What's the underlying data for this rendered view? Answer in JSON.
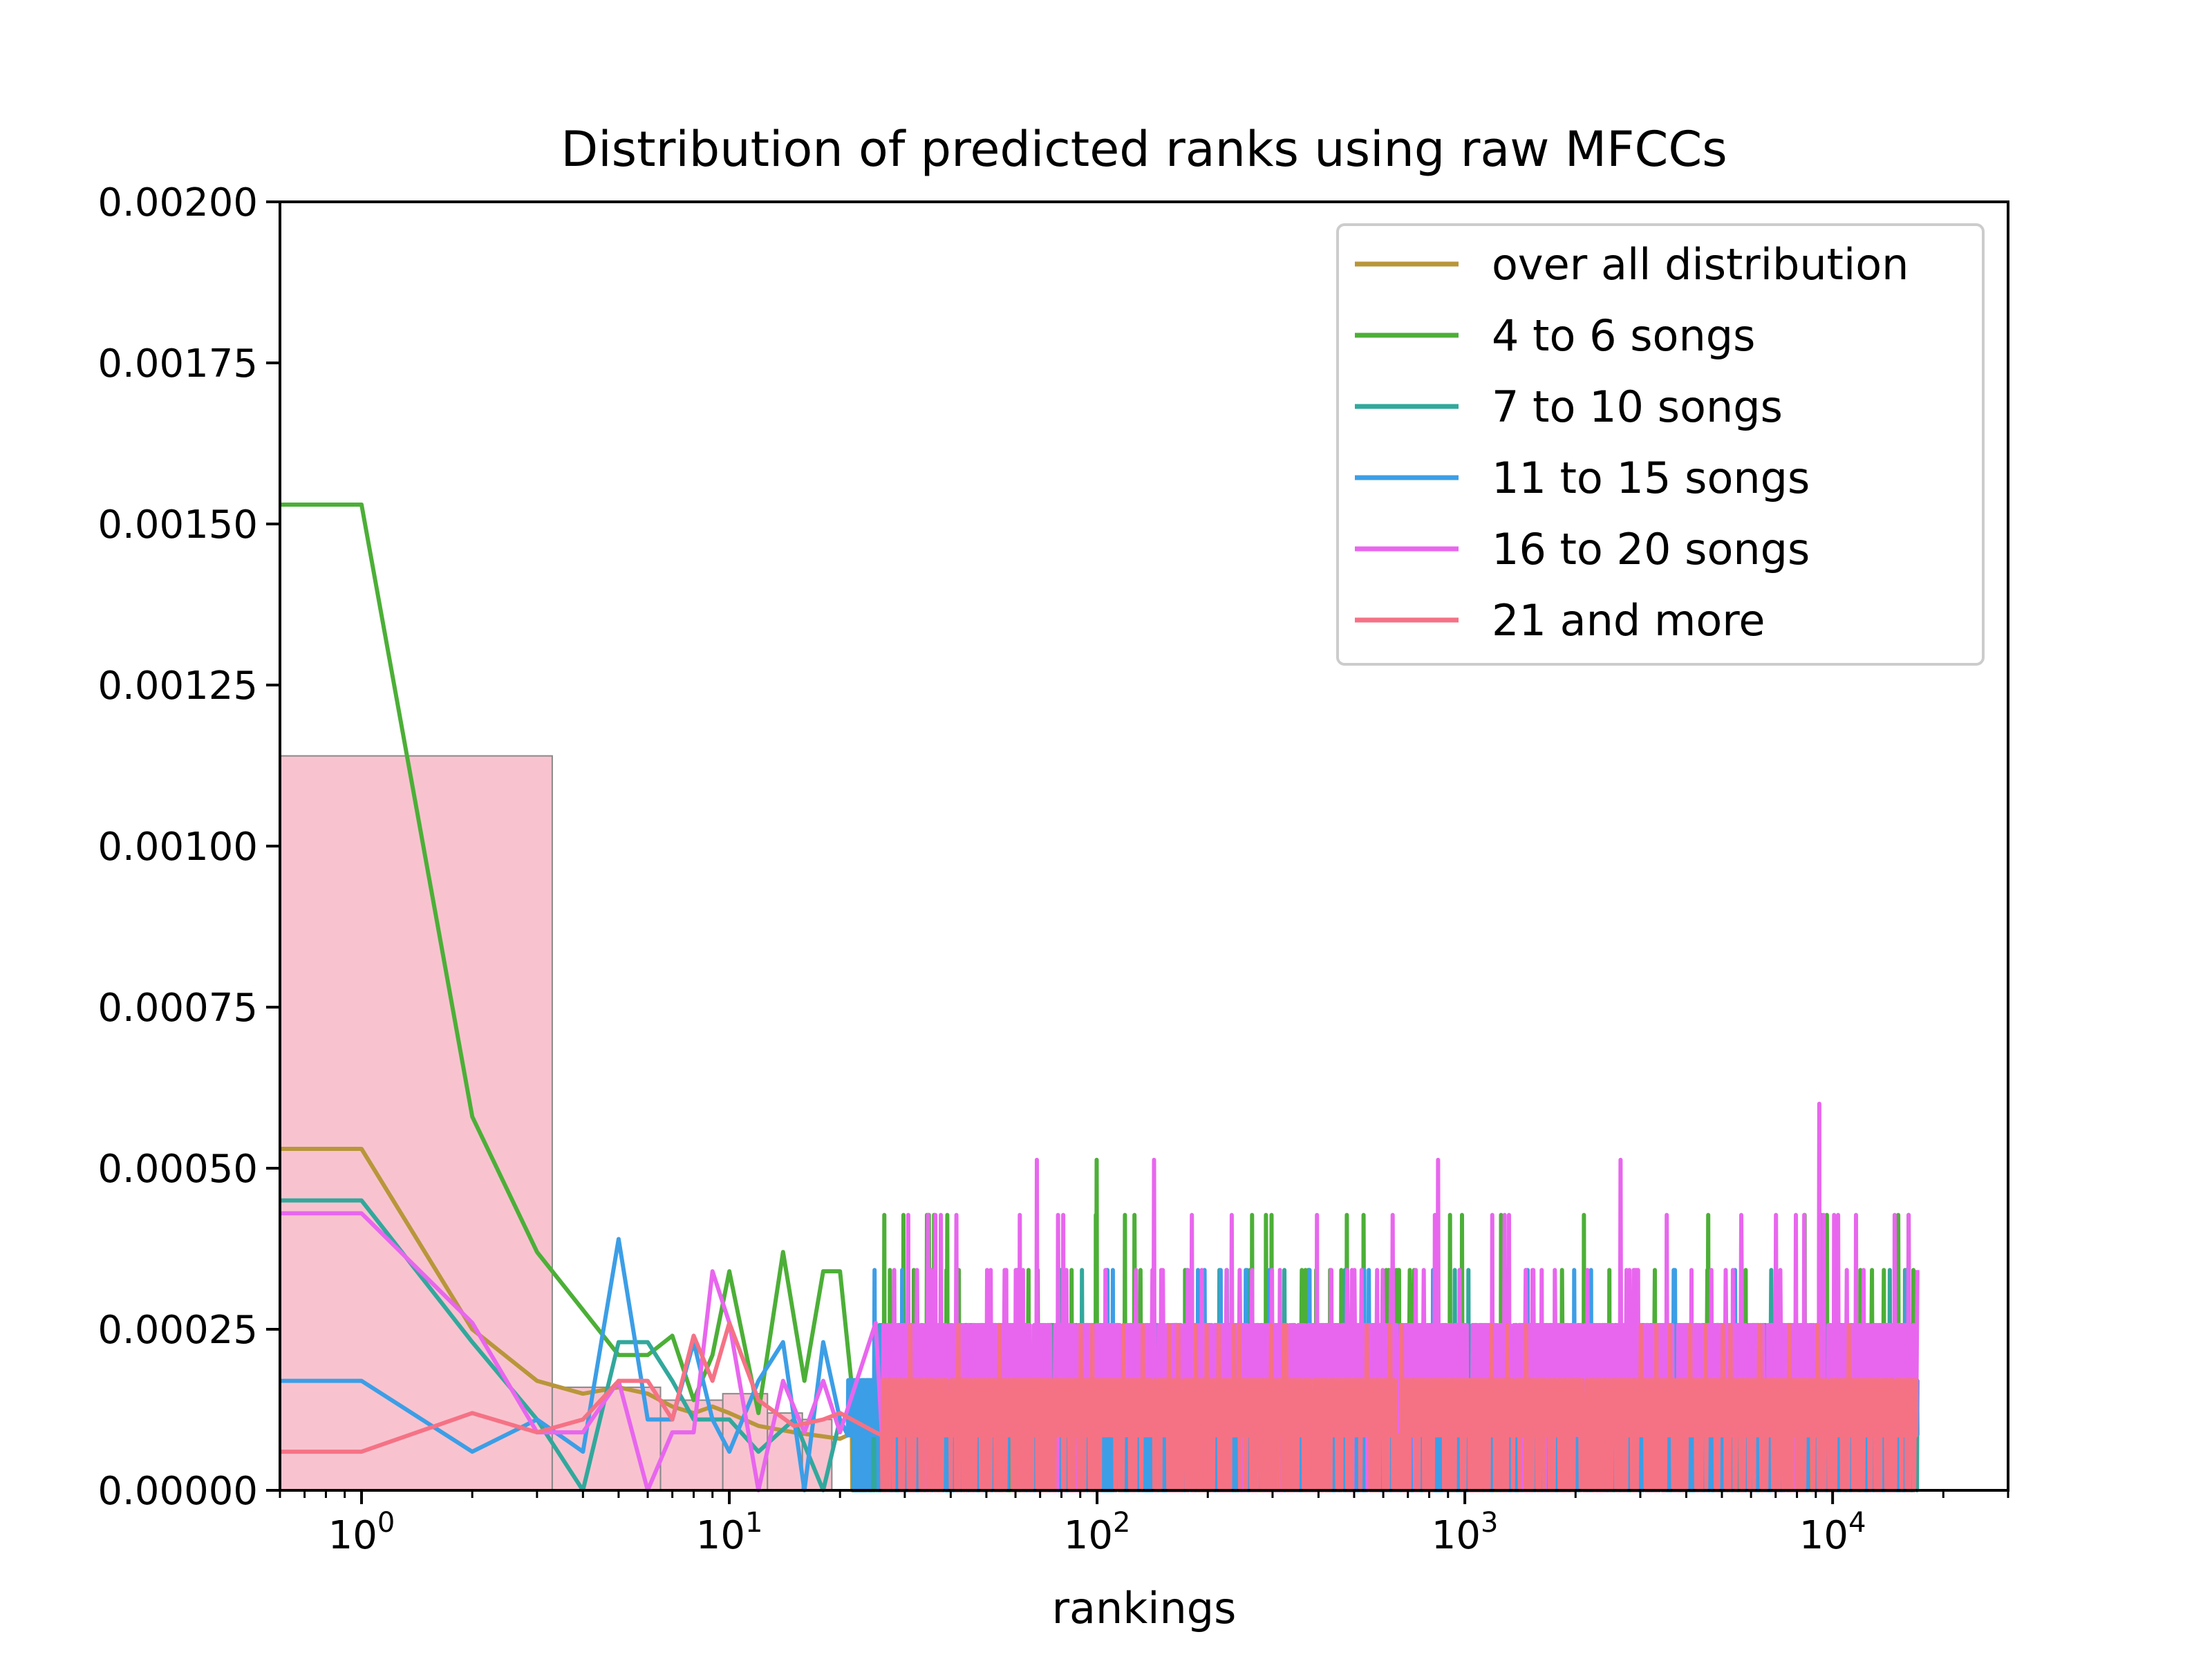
{
  "chart_data": {
    "type": "line",
    "title": "Distribution of predicted ranks using raw MFCCs",
    "xlabel": "rankings",
    "ylabel": "",
    "xscale": "log",
    "xlim": [
      0.6,
      30000
    ],
    "ylim": [
      0,
      0.002
    ],
    "x_ticks": [
      {
        "value": 1,
        "base": "10",
        "exp": "0"
      },
      {
        "value": 10,
        "base": "10",
        "exp": "1"
      },
      {
        "value": 100,
        "base": "10",
        "exp": "2"
      },
      {
        "value": 1000,
        "base": "10",
        "exp": "3"
      },
      {
        "value": 10000,
        "base": "10",
        "exp": "4"
      }
    ],
    "y_ticks": [
      {
        "value": 0,
        "label": "0.00000"
      },
      {
        "value": 0.00025,
        "label": "0.00025"
      },
      {
        "value": 0.0005,
        "label": "0.00050"
      },
      {
        "value": 0.00075,
        "label": "0.00075"
      },
      {
        "value": 0.001,
        "label": "0.00100"
      },
      {
        "value": 0.00125,
        "label": "0.00125"
      },
      {
        "value": 0.0015,
        "label": "0.00150"
      },
      {
        "value": 0.00175,
        "label": "0.00175"
      },
      {
        "value": 0.002,
        "label": "0.00200"
      }
    ],
    "grid": false,
    "legend_position": "top-right",
    "histogram": {
      "color": "#f8c3cf",
      "edge_color": "#888888",
      "bins": [
        {
          "x0": 0.6,
          "x1": 3.3,
          "value": 0.00114
        },
        {
          "x0": 3.3,
          "x1": 6.5,
          "value": 0.00016
        },
        {
          "x0": 6.5,
          "x1": 9.6,
          "value": 0.00014
        },
        {
          "x0": 9.6,
          "x1": 12.7,
          "value": 0.00015
        },
        {
          "x0": 12.7,
          "x1": 15.8,
          "value": 0.00012
        },
        {
          "x0": 15.8,
          "x1": 19.0,
          "value": 0.00011
        }
      ]
    },
    "series": [
      {
        "name": "over all distribution",
        "color": "#b8963a",
        "head": [
          [
            0.6,
            0.00053
          ],
          [
            1,
            0.00053
          ],
          [
            2,
            0.00025
          ],
          [
            3,
            0.00017
          ],
          [
            4,
            0.00015
          ],
          [
            5,
            0.00016
          ],
          [
            6,
            0.00015
          ],
          [
            7,
            0.00013
          ],
          [
            8,
            0.00012
          ],
          [
            9,
            0.00013
          ],
          [
            10,
            0.00012
          ],
          [
            12,
            0.0001
          ],
          [
            15,
            9e-05
          ],
          [
            20,
            8e-05
          ]
        ],
        "noise": {
          "base": 9e-05,
          "amp": 7e-05,
          "spike": 2e-05,
          "seed": 11,
          "xmax": 17000,
          "min": 2e-05
        }
      },
      {
        "name": "4 to 6 songs",
        "color": "#4caf37",
        "head": [
          [
            0.6,
            0.00153
          ],
          [
            1,
            0.00153
          ],
          [
            2,
            0.00058
          ],
          [
            3,
            0.00037
          ],
          [
            4,
            0.00028
          ],
          [
            5,
            0.00021
          ],
          [
            6,
            0.00021
          ],
          [
            7,
            0.00024
          ],
          [
            8,
            0.00014
          ],
          [
            9,
            0.00021
          ],
          [
            10,
            0.00034
          ],
          [
            12,
            0.00012
          ],
          [
            14,
            0.00037
          ],
          [
            16,
            0.00017
          ],
          [
            18,
            0.00034
          ],
          [
            20,
            0.00034
          ],
          [
            22,
            0.00011
          ],
          [
            25,
            6e-05
          ]
        ],
        "noise": {
          "base": 0.00012,
          "amp": 0.00014,
          "spike": 0.00012,
          "seed": 22,
          "xmax": 17000,
          "min": 0
        }
      },
      {
        "name": "7 to 10 songs",
        "color": "#32a89c",
        "head": [
          [
            0.6,
            0.00045
          ],
          [
            1,
            0.00045
          ],
          [
            2,
            0.00023
          ],
          [
            3,
            0.00011
          ],
          [
            4,
            0.0
          ],
          [
            5,
            0.00023
          ],
          [
            6,
            0.00023
          ],
          [
            7,
            0.00017
          ],
          [
            8,
            0.00011
          ],
          [
            9,
            0.00011
          ],
          [
            10,
            0.00011
          ],
          [
            12,
            6e-05
          ],
          [
            15,
            0.00011
          ],
          [
            18,
            0.0
          ],
          [
            20,
            0.00011
          ]
        ],
        "noise": {
          "base": 0.0001,
          "amp": 0.0001,
          "spike": 8e-05,
          "seed": 33,
          "xmax": 17000,
          "min": 0
        }
      },
      {
        "name": "11 to 15 songs",
        "color": "#3c9ee6",
        "head": [
          [
            0.6,
            0.00017
          ],
          [
            1,
            0.00017
          ],
          [
            2,
            6e-05
          ],
          [
            3,
            0.00011
          ],
          [
            4,
            6e-05
          ],
          [
            5,
            0.00039
          ],
          [
            6,
            0.00011
          ],
          [
            7,
            0.00011
          ],
          [
            8,
            0.00023
          ],
          [
            9,
            0.00011
          ],
          [
            10,
            6e-05
          ],
          [
            12,
            0.00017
          ],
          [
            14,
            0.00023
          ],
          [
            16,
            0.0
          ],
          [
            18,
            0.00023
          ],
          [
            20,
            0.00011
          ]
        ],
        "noise": {
          "base": 0.0001,
          "amp": 0.00011,
          "spike": 0.0001,
          "seed": 44,
          "xmax": 17000,
          "min": 0
        }
      },
      {
        "name": "16 to 20 songs",
        "color": "#e866ee",
        "head": [
          [
            0.6,
            0.00043
          ],
          [
            1,
            0.00043
          ],
          [
            2,
            0.00026
          ],
          [
            3,
            9e-05
          ],
          [
            4,
            9e-05
          ],
          [
            5,
            0.00017
          ],
          [
            6,
            0.0
          ],
          [
            7,
            9e-05
          ],
          [
            8,
            9e-05
          ],
          [
            9,
            0.00034
          ],
          [
            10,
            0.00026
          ],
          [
            12,
            0.0
          ],
          [
            14,
            0.00017
          ],
          [
            16,
            9e-05
          ],
          [
            18,
            0.00017
          ],
          [
            20,
            9e-05
          ],
          [
            25,
            0.00026
          ]
        ],
        "noise": {
          "base": 0.00017,
          "amp": 0.00013,
          "spike": 0.00011,
          "seed": 55,
          "xmax": 17000,
          "min": 0,
          "peak": [
            9200,
            0.0006
          ]
        }
      },
      {
        "name": "21 and more",
        "color": "#f57285",
        "head": [
          [
            0.6,
            6e-05
          ],
          [
            1,
            6e-05
          ],
          [
            2,
            0.00012
          ],
          [
            3,
            9e-05
          ],
          [
            4,
            0.00011
          ],
          [
            5,
            0.00017
          ],
          [
            6,
            0.00017
          ],
          [
            7,
            0.00011
          ],
          [
            8,
            0.00024
          ],
          [
            9,
            0.00017
          ],
          [
            10,
            0.00026
          ],
          [
            12,
            0.00014
          ],
          [
            15,
            0.0001
          ],
          [
            18,
            0.00011
          ],
          [
            20,
            0.00012
          ],
          [
            25,
            9e-05
          ]
        ],
        "noise": {
          "base": 0.00011,
          "amp": 0.0001,
          "spike": 4e-05,
          "seed": 66,
          "xmax": 17000,
          "min": 0
        }
      }
    ]
  }
}
